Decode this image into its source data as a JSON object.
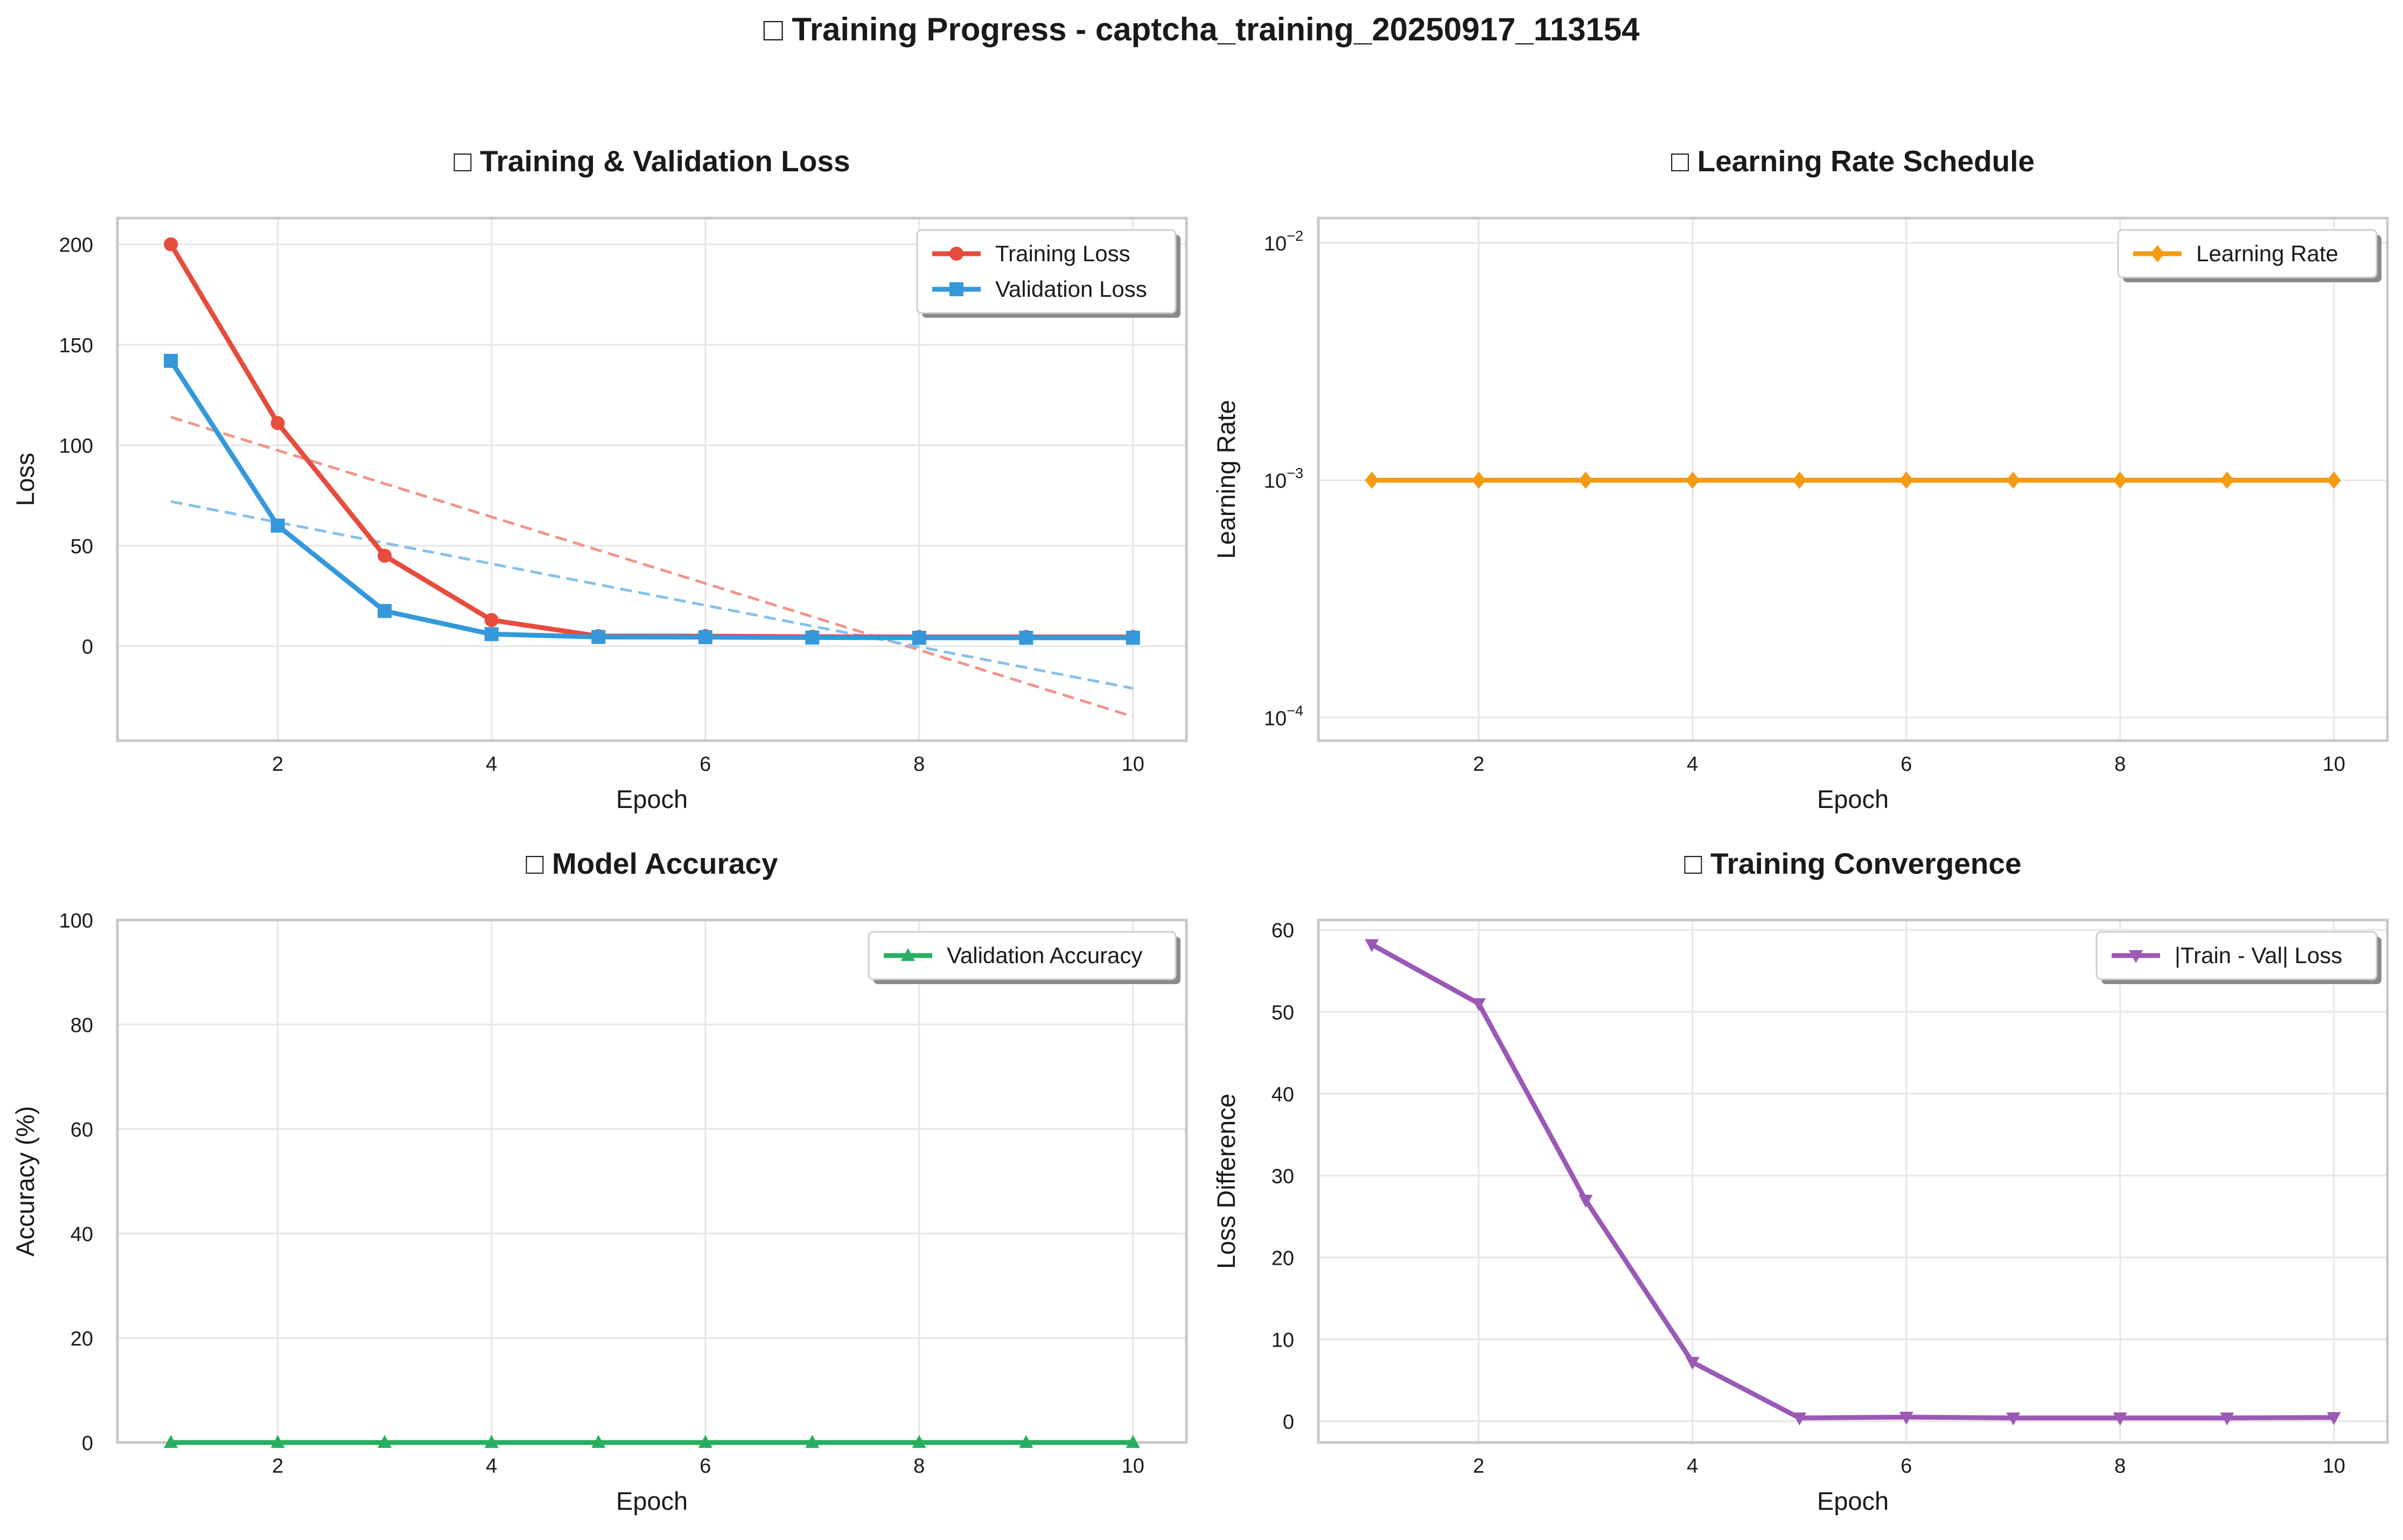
{
  "figure": {
    "title": "□ Training Progress - captcha_training_20250917_113154"
  },
  "chart_data": [
    {
      "id": "loss",
      "type": "line",
      "title": "□ Training & Validation Loss",
      "xlabel": "Epoch",
      "ylabel": "Loss",
      "xlim": [
        0.5,
        10.5
      ],
      "ylim": [
        -47,
        213
      ],
      "xticks": [
        2,
        4,
        6,
        8,
        10
      ],
      "yticks": [
        0,
        50,
        100,
        150,
        200
      ],
      "grid": true,
      "legend_position": "top-right",
      "x": [
        1,
        2,
        3,
        4,
        5,
        6,
        7,
        8,
        9,
        10
      ],
      "series": [
        {
          "name": "Training Loss",
          "color": "#e74c3c",
          "marker": "circle",
          "values": [
            200,
            111,
            45,
            13,
            5,
            5,
            4.7,
            4.6,
            4.6,
            4.6
          ]
        },
        {
          "name": "Validation Loss",
          "color": "#3498db",
          "marker": "square",
          "values": [
            142,
            60,
            17.5,
            6,
            4.6,
            4.5,
            4.3,
            4.2,
            4.2,
            4.2
          ]
        }
      ],
      "trends": [
        {
          "color": "#f1948a",
          "from": [
            1,
            114
          ],
          "to": [
            10,
            -35
          ]
        },
        {
          "color": "#85c1e9",
          "from": [
            1,
            72
          ],
          "to": [
            10,
            -21
          ]
        }
      ]
    },
    {
      "id": "lr",
      "type": "line",
      "title": "□ Learning Rate Schedule",
      "xlabel": "Epoch",
      "ylabel": "Learning Rate",
      "xlim": [
        0.5,
        10.5
      ],
      "ylim": [
        8e-05,
        0.0127
      ],
      "yscale": "log",
      "xticks": [
        2,
        4,
        6,
        8,
        10
      ],
      "yticks": [
        {
          "value": 0.0001,
          "base": "10",
          "exp": "−4"
        },
        {
          "value": 0.001,
          "base": "10",
          "exp": "−3"
        },
        {
          "value": 0.01,
          "base": "10",
          "exp": "−2"
        }
      ],
      "grid": true,
      "legend_position": "top-right",
      "x": [
        1,
        2,
        3,
        4,
        5,
        6,
        7,
        8,
        9,
        10
      ],
      "series": [
        {
          "name": "Learning Rate",
          "color": "#f39c12",
          "marker": "diamond",
          "values": [
            0.001,
            0.001,
            0.001,
            0.001,
            0.001,
            0.001,
            0.001,
            0.001,
            0.001,
            0.001
          ]
        }
      ]
    },
    {
      "id": "acc",
      "type": "line",
      "title": "□ Model Accuracy",
      "xlabel": "Epoch",
      "ylabel": "Accuracy (%)",
      "xlim": [
        0.5,
        10.5
      ],
      "ylim": [
        0,
        100
      ],
      "xticks": [
        2,
        4,
        6,
        8,
        10
      ],
      "yticks": [
        0,
        20,
        40,
        60,
        80,
        100
      ],
      "grid": true,
      "legend_position": "top-right",
      "x": [
        1,
        2,
        3,
        4,
        5,
        6,
        7,
        8,
        9,
        10
      ],
      "series": [
        {
          "name": "Validation Accuracy",
          "color": "#27ae60",
          "marker": "triangle-up",
          "values": [
            0,
            0,
            0,
            0,
            0,
            0,
            0,
            0,
            0,
            0
          ]
        }
      ]
    },
    {
      "id": "conv",
      "type": "line",
      "title": "□ Training Convergence",
      "xlabel": "Epoch",
      "ylabel": "Loss Difference",
      "xlim": [
        0.5,
        10.5
      ],
      "ylim": [
        -2.6,
        61.2
      ],
      "xticks": [
        2,
        4,
        6,
        8,
        10
      ],
      "yticks": [
        0,
        10,
        20,
        30,
        40,
        50,
        60
      ],
      "grid": true,
      "legend_position": "top-right",
      "x": [
        1,
        2,
        3,
        4,
        5,
        6,
        7,
        8,
        9,
        10
      ],
      "series": [
        {
          "name": "|Train - Val| Loss",
          "color": "#9b59b6",
          "marker": "triangle-down",
          "values": [
            58.2,
            51,
            27,
            7.2,
            0.4,
            0.5,
            0.4,
            0.4,
            0.4,
            0.45
          ]
        }
      ]
    }
  ]
}
